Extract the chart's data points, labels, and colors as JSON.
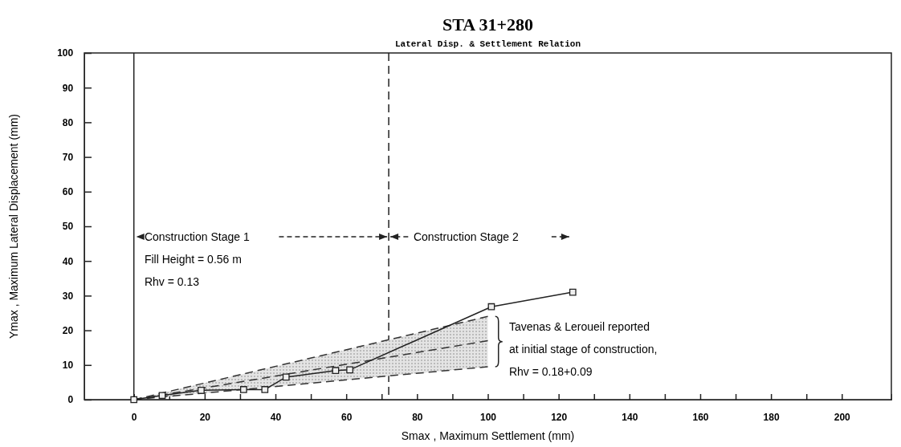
{
  "chart_data": {
    "type": "line",
    "title": "STA 31+280",
    "subtitle": "Lateral Disp. & Settlement Relation",
    "xlabel": "Smax , Maximum Settlement (mm)",
    "ylabel": "Ymax , Maximum Lateral Displacement (mm)",
    "xlim": [
      -14,
      214
    ],
    "ylim": [
      0,
      100
    ],
    "xticks": [
      0,
      {
        "value": 10,
        "label": null
      },
      20,
      {
        "value": 30,
        "label": null
      },
      40,
      {
        "value": 50,
        "label": null
      },
      60,
      {
        "value": 70,
        "label": null
      },
      80,
      {
        "value": 90,
        "label": null
      },
      100,
      {
        "value": 110,
        "label": null
      },
      120,
      {
        "value": 130,
        "label": null
      },
      140,
      {
        "value": 150,
        "label": null
      },
      160,
      {
        "value": 170,
        "label": null
      },
      180,
      {
        "value": 190,
        "label": null
      },
      200
    ],
    "yticks": [
      0,
      10,
      20,
      30,
      40,
      50,
      60,
      70,
      80,
      90,
      100
    ],
    "grid": false,
    "series": [
      {
        "color": "#222222",
        "x": [
          0,
          8,
          19,
          31,
          37,
          43,
          57,
          61,
          101,
          124
        ],
        "values": [
          0,
          1.2,
          2.7,
          2.9,
          2.9,
          6.5,
          8.4,
          8.6,
          26.8,
          31
        ],
        "marker": "square",
        "line_style": "solid"
      },
      {
        "color": "#333333",
        "x": [
          0,
          100
        ],
        "values": [
          0,
          17
        ],
        "lower": [
          0,
          9.5
        ],
        "upper": [
          0,
          24
        ],
        "marker": "none",
        "line_style": "dashed"
      },
      {
        "color": "#333333",
        "x": [
          0,
          100
        ],
        "values": [
          0,
          24
        ],
        "marker": "none",
        "line_style": "dashed"
      },
      {
        "color": "#333333",
        "x": [
          0,
          100
        ],
        "values": [
          0,
          9.5
        ],
        "marker": "none",
        "line_style": "dashed"
      }
    ],
    "ref_lines": [
      {
        "axis": "x",
        "value": 0,
        "line_style": "solid"
      },
      {
        "axis": "x",
        "value": 72,
        "line_style": "dashed"
      }
    ],
    "annotations": [
      "Construction Stage 1",
      "Construction Stage 2",
      "Fill Height = 0.56 m",
      "Rhv = 0.13",
      "Tavenas & Leroueil reported",
      "at initial stage of construction,",
      "Rhv = 0.18+0.09"
    ]
  }
}
